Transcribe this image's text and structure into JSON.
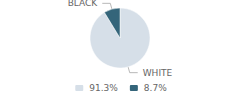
{
  "chart_data": {
    "type": "pie",
    "categories": [
      "WHITE",
      "BLACK"
    ],
    "values": [
      91.3,
      8.7
    ],
    "value_labels": [
      "91.3%",
      "8.7%"
    ],
    "colors": [
      "#d6dfe8",
      "#34657a"
    ],
    "legend": "bottom"
  }
}
